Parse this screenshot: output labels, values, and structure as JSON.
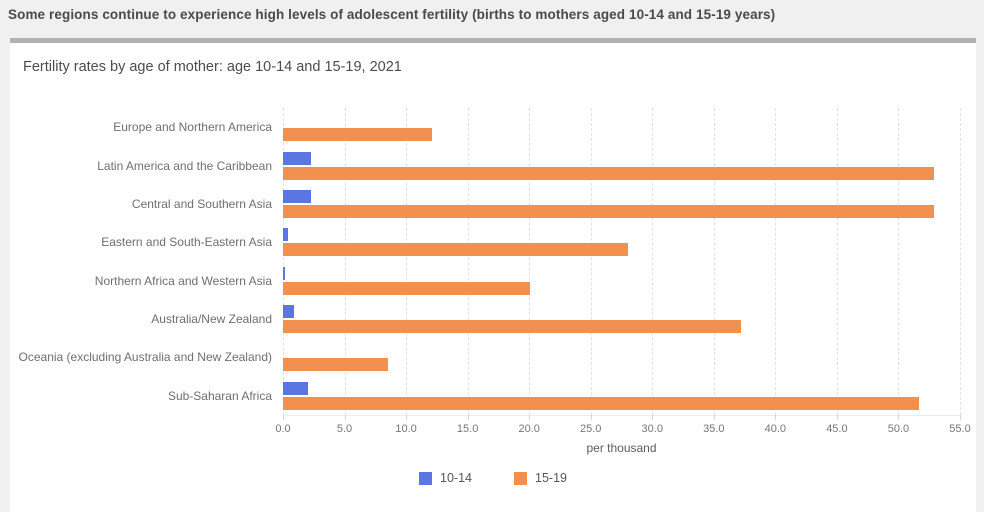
{
  "header": {
    "title": "Some regions continue to experience high levels of adolescent fertility (births to mothers aged 10-14 and 15-19 years)"
  },
  "chart": {
    "subtitle": "Fertility rates by age of mother: age 10-14 and 15-19, 2021"
  },
  "chart_data": {
    "type": "bar",
    "orientation": "horizontal",
    "title": "Fertility rates by age of mother: age 10-14 and 15-19, 2021",
    "categories": [
      "Europe and Northern America",
      "Latin America and the Caribbean",
      "Central and Southern Asia",
      "Eastern and South-Eastern Asia",
      "Northern Africa and Western Asia",
      "Australia/New Zealand",
      "Oceania (excluding Australia and New Zealand)",
      "Sub-Saharan Africa"
    ],
    "series": [
      {
        "name": "10-14",
        "color": "#5b76e0",
        "values": [
          0.0,
          2.3,
          2.3,
          0.4,
          0.2,
          0.9,
          0.0,
          2.0
        ]
      },
      {
        "name": "15-19",
        "color": "#f2914f",
        "values": [
          12.1,
          52.9,
          52.9,
          28.0,
          20.1,
          37.2,
          8.5,
          51.7
        ]
      }
    ],
    "xlabel": "per thousand",
    "xlim": [
      0,
      55
    ],
    "xticks": [
      "0.0",
      "5.0",
      "10.0",
      "15.0",
      "20.0",
      "25.0",
      "30.0",
      "35.0",
      "40.0",
      "45.0",
      "50.0",
      "55.0"
    ],
    "grid": true,
    "legend_position": "bottom"
  }
}
